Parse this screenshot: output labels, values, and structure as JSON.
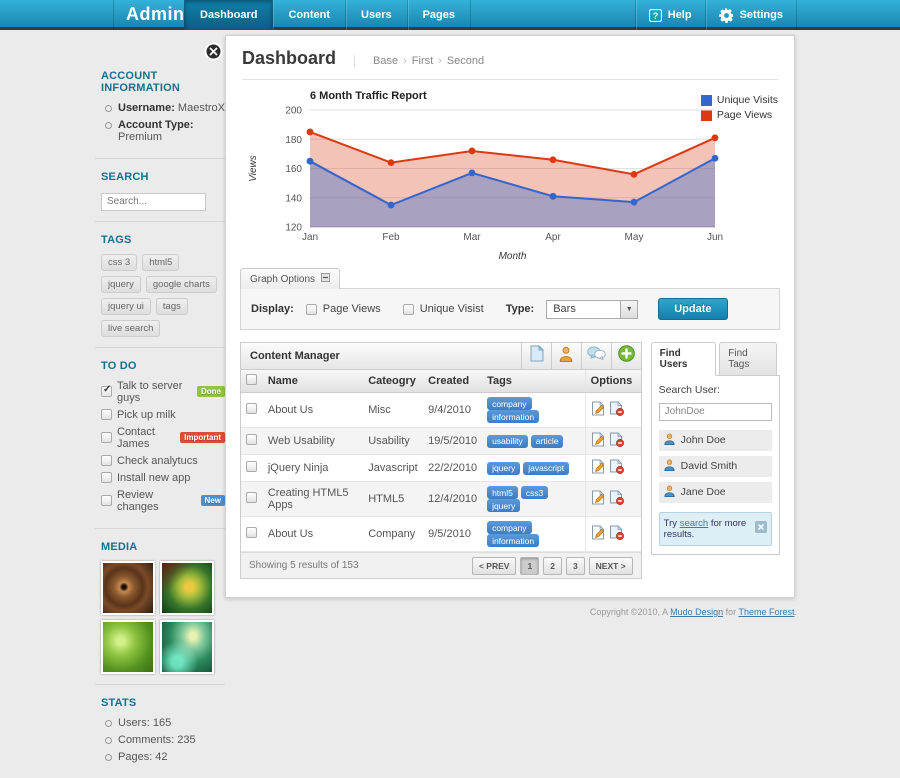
{
  "header": {
    "logo": "Admina",
    "nav": [
      {
        "label": "Dashboard",
        "active": true
      },
      {
        "label": "Content",
        "active": false
      },
      {
        "label": "Users",
        "active": false
      },
      {
        "label": "Pages",
        "active": false
      }
    ],
    "help_label": "Help",
    "settings_label": "Settings"
  },
  "sidebar": {
    "account": {
      "title": "ACCOUNT INFORMATION",
      "items": [
        {
          "label": "Username:",
          "value": "MaestroX"
        },
        {
          "label": "Account Type:",
          "value": "Premium"
        }
      ]
    },
    "search": {
      "title": "SEARCH",
      "placeholder": "Search..."
    },
    "tags": {
      "title": "TAGS",
      "items": [
        "css 3",
        "html5",
        "jquery",
        "google charts",
        "jquery ui",
        "tags",
        "live search"
      ]
    },
    "todo": {
      "title": "TO DO",
      "items": [
        {
          "label": "Talk to server guys",
          "checked": true,
          "badge": "Done",
          "badge_type": "done"
        },
        {
          "label": "Pick up milk",
          "checked": false,
          "badge": "",
          "badge_type": ""
        },
        {
          "label": "Contact James",
          "checked": false,
          "badge": "Important",
          "badge_type": "important"
        },
        {
          "label": "Check analytucs",
          "checked": false,
          "badge": "",
          "badge_type": ""
        },
        {
          "label": "Install new app",
          "checked": false,
          "badge": "",
          "badge_type": ""
        },
        {
          "label": "Review changes",
          "checked": false,
          "badge": "New",
          "badge_type": "new"
        }
      ]
    },
    "media": {
      "title": "MEDIA",
      "thumbs": [
        "fractal-orange",
        "fractal-flower",
        "green-blur",
        "green-swirl"
      ]
    },
    "stats": {
      "title": "STATS",
      "items": [
        "Users: 165",
        "Comments: 235",
        "Pages: 42"
      ]
    }
  },
  "main": {
    "title": "Dashboard",
    "breadcrumb": [
      "Base",
      "First",
      "Second"
    ],
    "graph_options": {
      "tab_label": "Graph Options",
      "display_label": "Display:",
      "checkboxes": [
        {
          "label": "Page Views",
          "checked": false
        },
        {
          "label": "Unique Visist",
          "checked": false
        }
      ],
      "type_label": "Type:",
      "type_value": "Bars",
      "update_label": "Update"
    },
    "content_manager": {
      "title": "Content Manager",
      "toolbar_icons": [
        "document-icon",
        "user-icon",
        "comments-icon",
        "add-icon"
      ],
      "columns": [
        "Name",
        "Cateogry",
        "Created",
        "Tags",
        "Options"
      ],
      "rows": [
        {
          "name": "About Us",
          "category": "Misc",
          "created": "9/4/2010",
          "tags": [
            "company",
            "information"
          ]
        },
        {
          "name": "Web Usability",
          "category": "Usability",
          "created": "19/5/2010",
          "tags": [
            "usability",
            "article"
          ]
        },
        {
          "name": "jQuery Ninja",
          "category": "Javascript",
          "created": "22/2/2010",
          "tags": [
            "jquery",
            "javascript"
          ]
        },
        {
          "name": "Creating HTML5 Apps",
          "category": "HTML5",
          "created": "12/4/2010",
          "tags": [
            "html5",
            "css3",
            "jquery"
          ]
        },
        {
          "name": "About Us",
          "category": "Company",
          "created": "9/5/2010",
          "tags": [
            "company",
            "information"
          ]
        }
      ],
      "footer": {
        "summary": "Showing 5 results of 153",
        "pagination": [
          "< PREV",
          "1",
          "2",
          "3",
          "NEXT >"
        ],
        "active_page": "1"
      }
    },
    "find_panel": {
      "tabs": [
        {
          "label": "Find Users",
          "active": true
        },
        {
          "label": "Find Tags",
          "active": false
        }
      ],
      "search_label": "Search User:",
      "search_value": "JohnDoe",
      "users": [
        "John Doe",
        "David Smith",
        "Jane Doe"
      ],
      "alert": {
        "prefix": "Try ",
        "link": "search",
        "suffix": " for more results."
      }
    }
  },
  "chart_data": {
    "type": "area",
    "title": "6 Month Traffic Report",
    "categories": [
      "Jan",
      "Feb",
      "Mar",
      "Apr",
      "May",
      "Jun"
    ],
    "series": [
      {
        "name": "Unique Visits",
        "color": "#3366cc",
        "values": [
          165,
          135,
          157,
          141,
          137,
          167
        ]
      },
      {
        "name": "Page Views",
        "color": "#dc3912",
        "values": [
          185,
          164,
          172,
          166,
          156,
          181
        ]
      }
    ],
    "xlabel": "Month",
    "ylabel": "Views",
    "ylim": [
      120,
      200
    ],
    "ytick": 20,
    "grid": true,
    "legend_position": "top-right"
  },
  "footer": {
    "prefix": "Copyright ©2010, A ",
    "link1": "Mudo Design",
    "middle": " for ",
    "link2": "Theme Forest",
    "suffix": "."
  },
  "colors": {
    "header_accent": "#1a87b2",
    "heading_teal": "#13718f",
    "tag_blue": "#3d7cc2",
    "update_blue": "#177fab",
    "badges": {
      "done": "#8ec549",
      "important": "#dd4b39",
      "new": "#4a8fd3"
    }
  }
}
